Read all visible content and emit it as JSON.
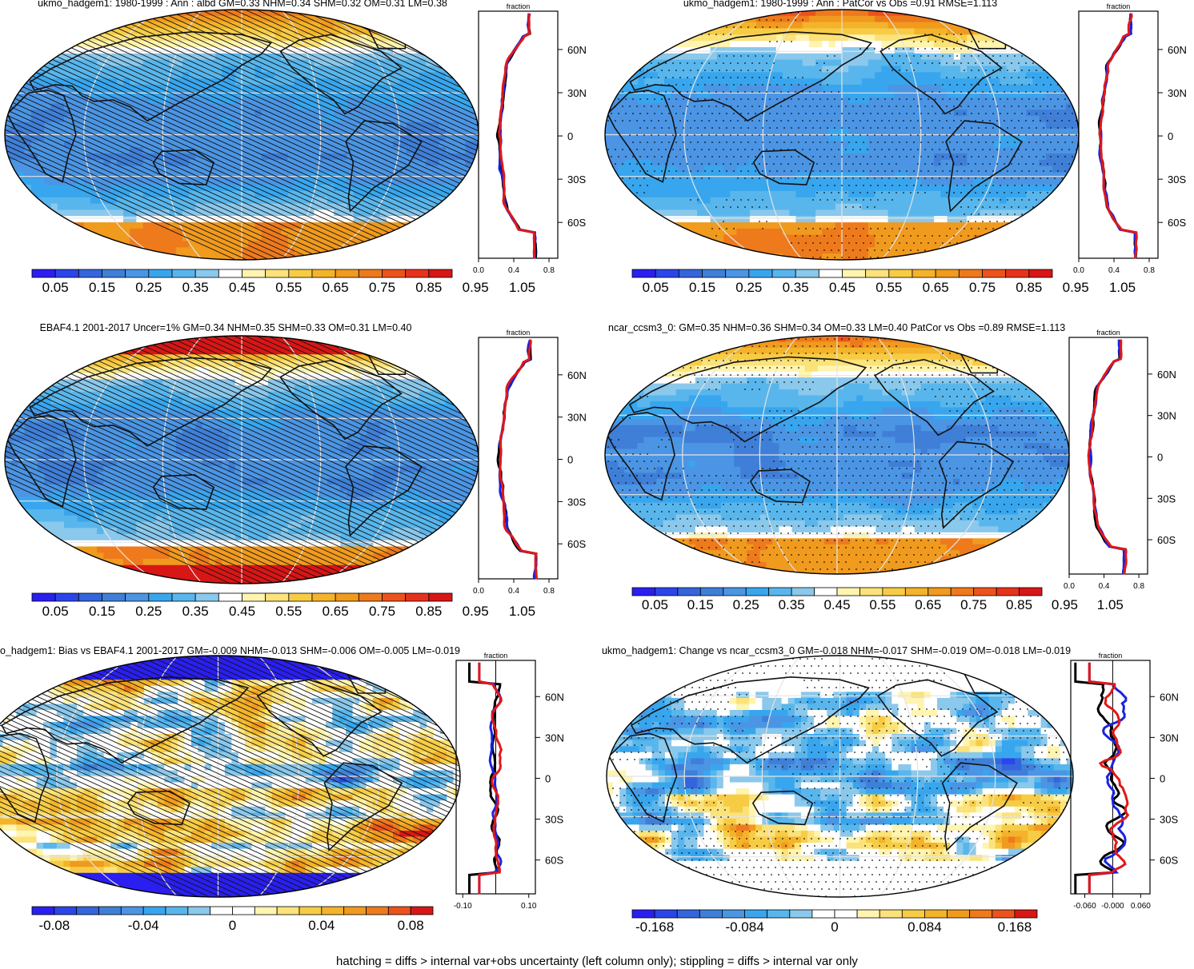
{
  "caption": "hatching = diffs > internal var+obs uncertainty (left column only); stippling = diffs > internal var only",
  "colors": {
    "abs_palette": [
      "#2a1ff0",
      "#2b45ea",
      "#3465dc",
      "#3f7fd8",
      "#4b95e4",
      "#38a6ee",
      "#58b6ec",
      "#8ac8ec",
      "#ffffff",
      "#fff4b0",
      "#fbe27a",
      "#f7cc45",
      "#f3b32a",
      "#f09a1e",
      "#ee7a1c",
      "#ec531c",
      "#e6321c",
      "#d81616"
    ],
    "diff_palette": [
      "#2a1ff0",
      "#2b45ea",
      "#3465dc",
      "#3f7fd8",
      "#4b95e4",
      "#38a6ee",
      "#58b6ec",
      "#8ac8ec",
      "#ffffff",
      "#ffffff",
      "#fff4b0",
      "#fbe27a",
      "#f7cc45",
      "#f3b32a",
      "#f09a1e",
      "#ee7a1c",
      "#ec531c",
      "#d81616"
    ],
    "model_line": "#1a22e0",
    "obs_line": "#e01818",
    "ref_line": "#000000"
  },
  "panels": [
    {
      "title": "ukmo_hadgem1: 1980-1999 : Ann : albd GM=0.33 NHM=0.34 SHM=0.32 OM=0.31 LM=0.38",
      "overlay": "hatch",
      "field": "abs",
      "colorbar_labels": [
        "0.05",
        "0.15",
        "0.25",
        "0.35",
        "0.45",
        "0.55",
        "0.65",
        "0.75",
        "0.85",
        "0.95",
        "1.05"
      ],
      "profile": {
        "label": "fraction",
        "lat_ticks": [
          "60N",
          "30N",
          "0",
          "30S",
          "60S"
        ],
        "x_ticks": [
          "0.0",
          "0.4",
          "0.8"
        ],
        "xlim": [
          0.0,
          0.9
        ]
      }
    },
    {
      "title": "ukmo_hadgem1: 1980-1999 : Ann : PatCor vs Obs =0.91 RMSE=1.113",
      "overlay": "stipple",
      "field": "abs",
      "colorbar_labels": [
        "0.05",
        "0.15",
        "0.25",
        "0.35",
        "0.45",
        "0.55",
        "0.65",
        "0.75",
        "0.85",
        "0.95",
        "1.05"
      ],
      "profile": {
        "label": "fraction",
        "lat_ticks": [
          "60N",
          "30N",
          "0",
          "30S",
          "60S"
        ],
        "x_ticks": [
          "0.0",
          "0.4",
          "0.8"
        ],
        "xlim": [
          0.0,
          0.9
        ]
      }
    },
    {
      "title": "EBAF4.1 2001-2017 Uncer=1% GM=0.34 NHM=0.35 SHM=0.33 OM=0.31 LM=0.40",
      "overlay": "hatch",
      "field": "obs",
      "colorbar_labels": [
        "0.05",
        "0.15",
        "0.25",
        "0.35",
        "0.45",
        "0.55",
        "0.65",
        "0.75",
        "0.85",
        "0.95",
        "1.05"
      ],
      "profile": {
        "label": "fraction",
        "lat_ticks": [
          "60N",
          "30N",
          "0",
          "30S",
          "60S"
        ],
        "x_ticks": [
          "0.0",
          "0.4",
          "0.8"
        ],
        "xlim": [
          0.0,
          0.9
        ]
      }
    },
    {
      "title": "ncar_ccsm3_0: GM=0.35 NHM=0.36 SHM=0.34 OM=0.33 LM=0.40 PatCor vs Obs =0.89 RMSE=1.113",
      "overlay": "stipple",
      "field": "abs",
      "colorbar_labels": [
        "0.05",
        "0.15",
        "0.25",
        "0.35",
        "0.45",
        "0.55",
        "0.65",
        "0.75",
        "0.85",
        "0.95",
        "1.05"
      ],
      "profile": {
        "label": "fraction",
        "lat_ticks": [
          "60N",
          "30N",
          "0",
          "30S",
          "60S"
        ],
        "x_ticks": [
          "0.0",
          "0.4",
          "0.8"
        ],
        "xlim": [
          0.0,
          0.9
        ]
      }
    },
    {
      "title": "o_hadgem1: Bias vs EBAF4.1 2001-2017 GM=-0.009 NHM=-0.013 SHM=-0.006 OM=-0.005 LM=-0.019",
      "overlay": "hatch",
      "field": "bias",
      "colorbar_labels": [
        "-0.08",
        "-0.04",
        "0",
        "0.04",
        "0.08"
      ],
      "profile": {
        "label": "fraction",
        "lat_ticks": [
          "60N",
          "30N",
          "0",
          "30S",
          "60S"
        ],
        "x_ticks": [
          "-0.10",
          "0.10"
        ],
        "xlim": [
          -0.12,
          0.12
        ]
      }
    },
    {
      "title": "ukmo_hadgem1: Change vs ncar_ccsm3_0 GM=-0.018 NHM=-0.017 SHM=-0.019 OM=-0.018 LM=-0.019",
      "overlay": "stipple",
      "field": "change",
      "colorbar_labels": [
        "-0.168",
        "-0.084",
        "0",
        "0.084",
        "0.168"
      ],
      "profile": {
        "label": "fraction",
        "lat_ticks": [
          "60N",
          "30N",
          "0",
          "30S",
          "60S"
        ],
        "x_ticks": [
          "-0.060",
          "-0.000",
          "0.060"
        ],
        "xlim": [
          -0.09,
          0.08
        ]
      }
    }
  ]
}
